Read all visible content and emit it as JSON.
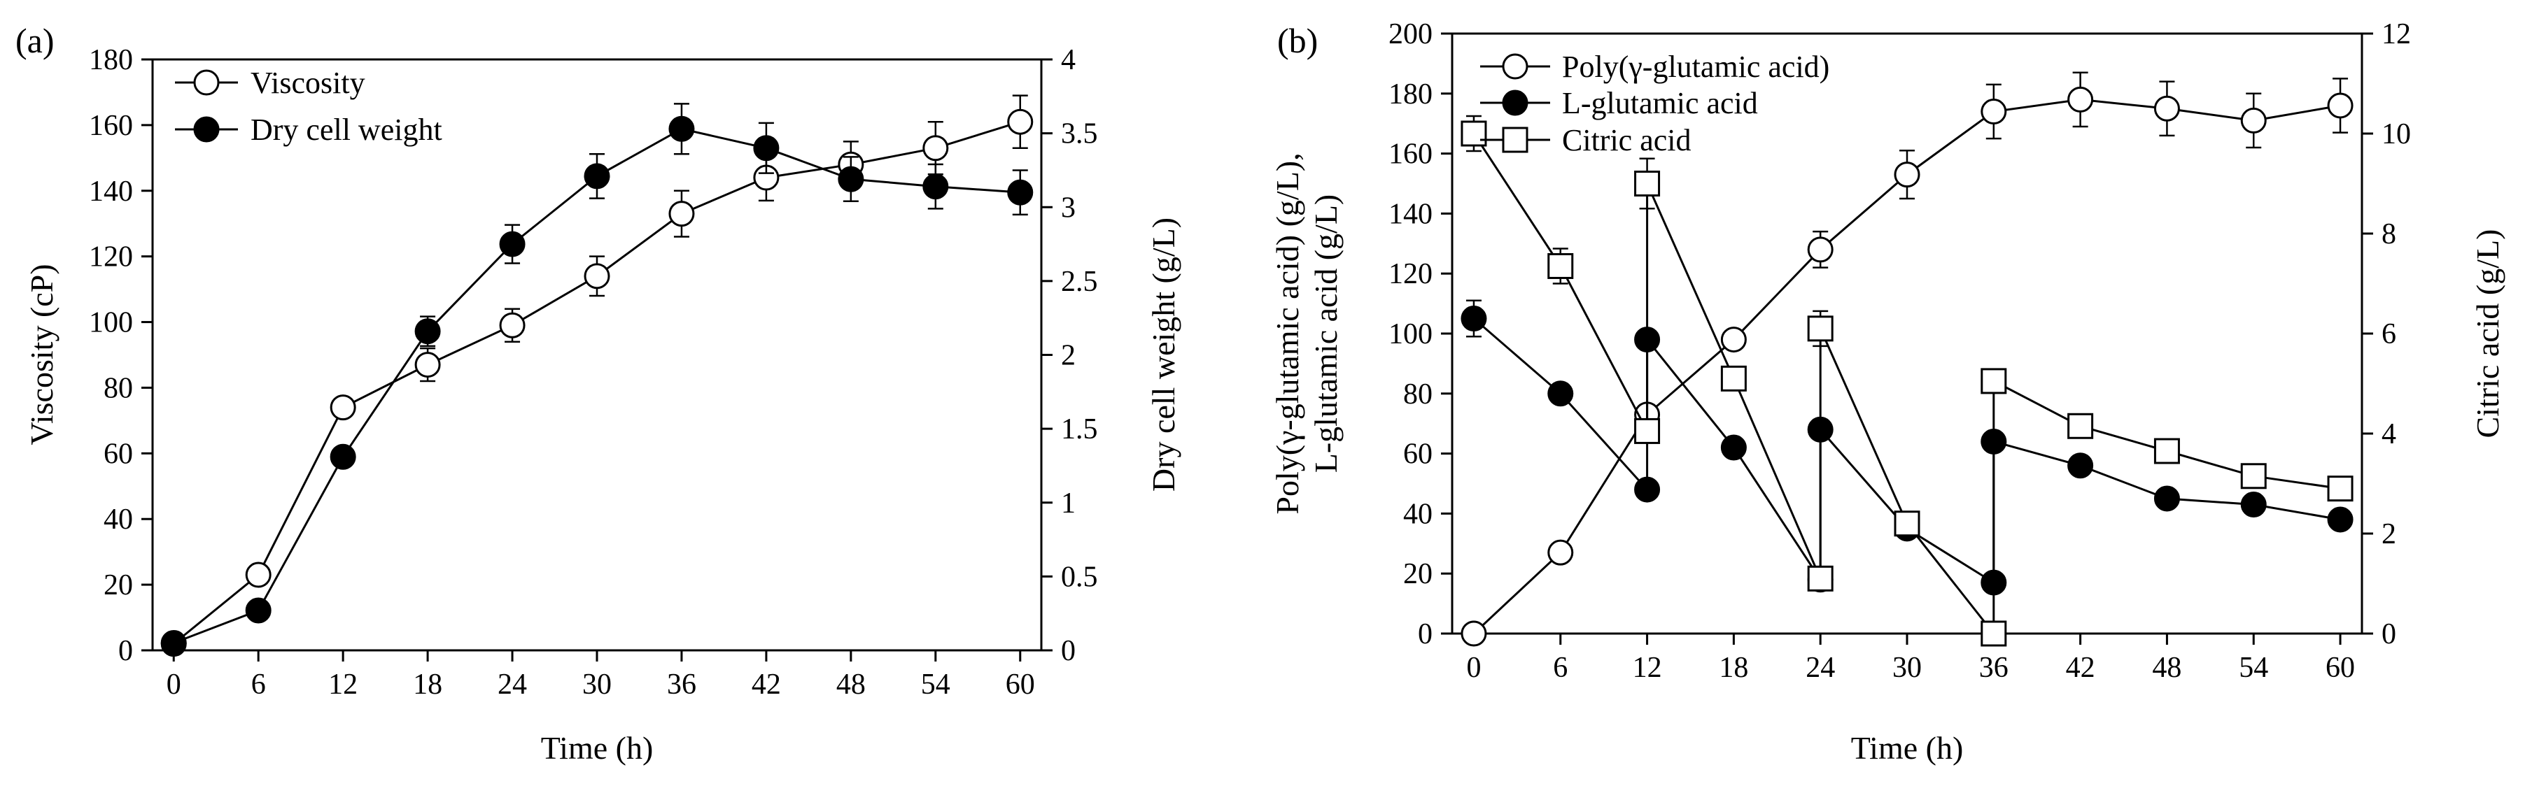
{
  "chart_data": [
    {
      "panel_label": "(a)",
      "type": "line",
      "xlabel": "Time (h)",
      "x": [
        0,
        6,
        12,
        18,
        24,
        30,
        36,
        42,
        48,
        54,
        60
      ],
      "x_ticks": [
        0,
        6,
        12,
        18,
        24,
        30,
        36,
        42,
        48,
        54,
        60
      ],
      "xlim": [
        -1.5,
        61.5
      ],
      "y_left": {
        "label": "Viscosity (cP)",
        "lim": [
          0,
          180
        ],
        "ticks": [
          0,
          20,
          40,
          60,
          80,
          100,
          120,
          140,
          160,
          180
        ]
      },
      "y_right": {
        "label": "Dry cell weight (g/L)",
        "lim": [
          0,
          4
        ],
        "ticks": [
          0,
          0.5,
          1,
          1.5,
          2,
          2.5,
          3,
          3.5,
          4
        ],
        "tick_labels": [
          "0",
          "0.5",
          "1",
          "1.5",
          "2",
          "2.5",
          "3",
          "3.5",
          "4"
        ]
      },
      "legend_position": "top-left",
      "series": [
        {
          "name": "Viscosity",
          "axis": "left",
          "marker": "circle-open",
          "values": [
            2,
            23,
            74,
            87,
            99,
            114,
            133,
            144,
            148,
            153,
            161
          ],
          "errors": [
            0,
            0,
            0,
            5,
            5,
            6,
            7,
            7,
            7,
            8,
            8
          ]
        },
        {
          "name": "Dry cell weight",
          "axis": "right",
          "marker": "circle-filled",
          "values": [
            0.05,
            0.27,
            1.31,
            2.16,
            2.75,
            3.21,
            3.53,
            3.4,
            3.19,
            3.14,
            3.1
          ],
          "errors": [
            0,
            0,
            0,
            0.1,
            0.13,
            0.15,
            0.17,
            0.17,
            0.15,
            0.15,
            0.15
          ]
        }
      ]
    },
    {
      "panel_label": "(b)",
      "type": "line",
      "xlabel": "Time (h)",
      "x_ticks": [
        0,
        6,
        12,
        18,
        24,
        30,
        36,
        42,
        48,
        54,
        60
      ],
      "xlim": [
        -1.5,
        61.5
      ],
      "y_left": {
        "label_line1": "Poly(γ-glutamic acid) (g/L),",
        "label_line2": "L-glutamic acid (g/L)",
        "lim": [
          0,
          200
        ],
        "ticks": [
          0,
          20,
          40,
          60,
          80,
          100,
          120,
          140,
          160,
          180,
          200
        ]
      },
      "y_right": {
        "label": "Citric acid (g/L)",
        "lim": [
          0,
          12
        ],
        "ticks": [
          0,
          2,
          4,
          6,
          8,
          10,
          12
        ]
      },
      "legend_position": "top-left",
      "series": [
        {
          "name": "Poly(γ-glutamic acid)",
          "axis": "left",
          "marker": "circle-open",
          "x": [
            0,
            6,
            12,
            18,
            24,
            30,
            36,
            42,
            48,
            54,
            60
          ],
          "values": [
            0,
            27,
            73,
            98,
            128,
            153,
            174,
            178,
            175,
            171,
            176
          ],
          "errors": [
            0,
            0,
            0,
            0,
            6,
            8,
            9,
            9,
            9,
            9,
            9
          ]
        },
        {
          "name": "L-glutamic acid",
          "axis": "left",
          "marker": "circle-filled",
          "x": [
            0,
            6,
            12,
            12,
            18,
            24,
            24,
            30,
            36,
            36,
            42,
            48,
            54,
            60
          ],
          "values": [
            105,
            80,
            48,
            98,
            62,
            18,
            68,
            35,
            17,
            64,
            56,
            45,
            43,
            38
          ],
          "errors": [
            6,
            0,
            0,
            0,
            0,
            0,
            0,
            0,
            0,
            0,
            0,
            0,
            0,
            0
          ]
        },
        {
          "name": "Citric acid",
          "axis": "right",
          "marker": "square-open",
          "x": [
            0,
            6,
            12,
            12,
            18,
            24,
            24,
            30,
            36,
            36,
            42,
            48,
            54,
            60
          ],
          "values": [
            10,
            7.35,
            4.05,
            9,
            5.1,
            1.1,
            6.1,
            2.2,
            0,
            5.05,
            4.15,
            3.65,
            3.15,
            2.9
          ],
          "errors": [
            0.35,
            0.35,
            0,
            0.5,
            0,
            0,
            0.35,
            0,
            0,
            0,
            0,
            0,
            0,
            0
          ]
        }
      ]
    }
  ]
}
